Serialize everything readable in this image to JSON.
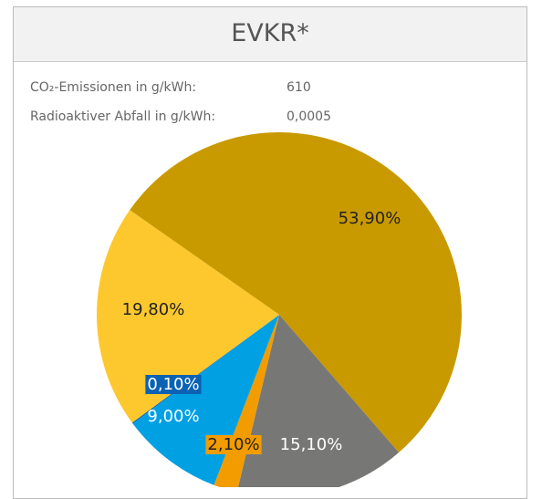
{
  "header": {
    "title": "EVKR*"
  },
  "info": [
    {
      "label": "CO₂-Emissionen in g/kWh:",
      "value": "610"
    },
    {
      "label": "Radioaktiver Abfall in g/kWh:",
      "value": "0,0005"
    }
  ],
  "chart_data": {
    "type": "pie",
    "values": [
      53.9,
      15.1,
      2.1,
      9.0,
      0.1,
      19.8
    ],
    "value_labels": [
      "53,90%",
      "15,10%",
      "2,10%",
      "9,00%",
      "0,10%",
      "19,80%"
    ],
    "colors": [
      "#c99a00",
      "#777876",
      "#f29c00",
      "#00a0e3",
      "#0b62b4",
      "#fdc82e"
    ]
  }
}
